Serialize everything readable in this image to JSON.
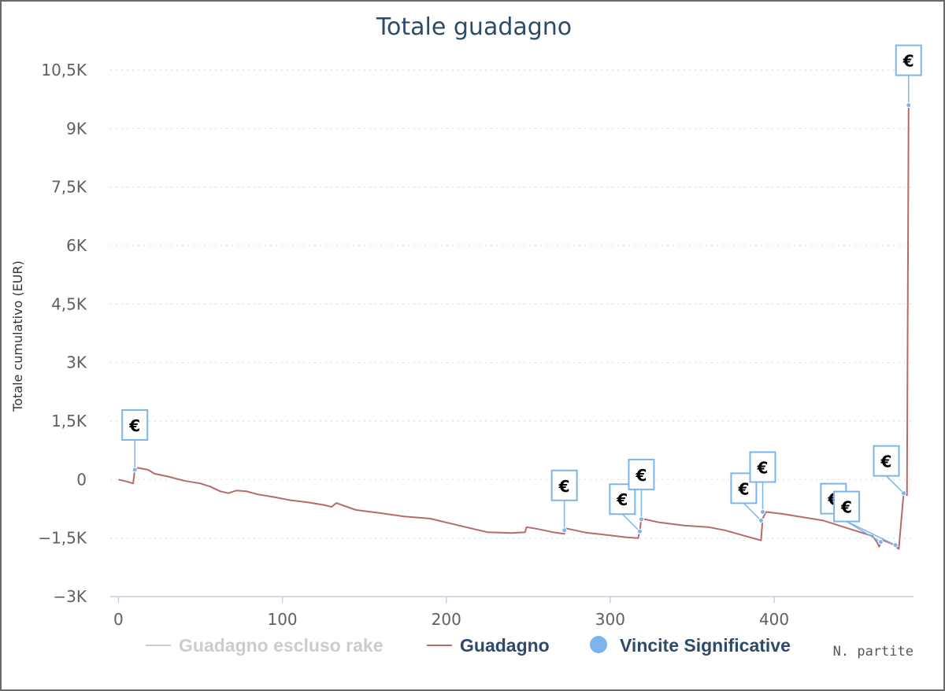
{
  "chart_data": {
    "type": "line",
    "title": "Totale guadagno",
    "xlabel": "N. partite",
    "ylabel": "Totale cumulativo (EUR)",
    "xlim": [
      -5,
      485
    ],
    "ylim": [
      -3000,
      10500
    ],
    "x_ticks": [
      {
        "value": 0,
        "label": "0"
      },
      {
        "value": 100,
        "label": "100"
      },
      {
        "value": 200,
        "label": "200"
      },
      {
        "value": 300,
        "label": "300"
      },
      {
        "value": 400,
        "label": "400"
      }
    ],
    "y_ticks": [
      {
        "value": -3000,
        "label": "−3K"
      },
      {
        "value": -1500,
        "label": "−1,5K"
      },
      {
        "value": 0,
        "label": "0"
      },
      {
        "value": 1500,
        "label": "1,5K"
      },
      {
        "value": 3000,
        "label": "3K"
      },
      {
        "value": 4500,
        "label": "4,5K"
      },
      {
        "value": 6000,
        "label": "6K"
      },
      {
        "value": 7500,
        "label": "7,5K"
      },
      {
        "value": 9000,
        "label": "9K"
      },
      {
        "value": 10500,
        "label": "10,5K"
      }
    ],
    "grid": true,
    "legend_position": "bottom",
    "series": [
      {
        "name": "Guadagno",
        "color": "#b86a6a",
        "points": [
          [
            0,
            0
          ],
          [
            5,
            -50
          ],
          [
            9,
            -100
          ],
          [
            10,
            250
          ],
          [
            12,
            300
          ],
          [
            18,
            250
          ],
          [
            22,
            150
          ],
          [
            30,
            80
          ],
          [
            40,
            -30
          ],
          [
            50,
            -100
          ],
          [
            56,
            -180
          ],
          [
            62,
            -300
          ],
          [
            67,
            -350
          ],
          [
            72,
            -280
          ],
          [
            78,
            -300
          ],
          [
            85,
            -380
          ],
          [
            95,
            -450
          ],
          [
            105,
            -530
          ],
          [
            115,
            -580
          ],
          [
            125,
            -650
          ],
          [
            130,
            -700
          ],
          [
            133,
            -600
          ],
          [
            136,
            -650
          ],
          [
            145,
            -780
          ],
          [
            160,
            -860
          ],
          [
            175,
            -950
          ],
          [
            190,
            -1000
          ],
          [
            205,
            -1150
          ],
          [
            215,
            -1250
          ],
          [
            225,
            -1350
          ],
          [
            240,
            -1370
          ],
          [
            248,
            -1350
          ],
          [
            249,
            -1220
          ],
          [
            255,
            -1260
          ],
          [
            265,
            -1350
          ],
          [
            272,
            -1390
          ],
          [
            273,
            -1250
          ],
          [
            285,
            -1360
          ],
          [
            300,
            -1430
          ],
          [
            310,
            -1480
          ],
          [
            317,
            -1500
          ],
          [
            318,
            -1330
          ],
          [
            319,
            -1000
          ],
          [
            330,
            -1100
          ],
          [
            345,
            -1180
          ],
          [
            360,
            -1220
          ],
          [
            370,
            -1300
          ],
          [
            380,
            -1420
          ],
          [
            392,
            -1560
          ],
          [
            393,
            -1000
          ],
          [
            395,
            -830
          ],
          [
            405,
            -880
          ],
          [
            415,
            -950
          ],
          [
            430,
            -1050
          ],
          [
            445,
            -1250
          ],
          [
            460,
            -1450
          ],
          [
            463,
            -1620
          ],
          [
            464,
            -1720
          ],
          [
            466,
            -1550
          ],
          [
            472,
            -1650
          ],
          [
            476,
            -1780
          ],
          [
            479,
            -350
          ],
          [
            481,
            -400
          ],
          [
            482,
            9600
          ]
        ]
      }
    ],
    "legend": [
      {
        "label": "Guadagno escluso rake",
        "color": "#cccccc",
        "text_color": "#cccccc",
        "symbol": "line"
      },
      {
        "label": "Guadagno",
        "color": "#b86a6a",
        "text_color": "#2d4a6b",
        "symbol": "line"
      },
      {
        "label": "Vincite Significative",
        "color": "#7cb5ec",
        "text_color": "#2d4a6b",
        "symbol": "circle"
      }
    ],
    "flags": {
      "text": "€",
      "color": "#7cb5ec",
      "points": [
        {
          "x": 10,
          "y": 250,
          "dir": "up"
        },
        {
          "x": 272,
          "y": -1300,
          "dir": "up"
        },
        {
          "x": 318,
          "y": -1330,
          "dir": "up-left"
        },
        {
          "x": 319,
          "y": -1020,
          "dir": "up"
        },
        {
          "x": 392,
          "y": -1050,
          "dir": "up-left"
        },
        {
          "x": 393,
          "y": -830,
          "dir": "up"
        },
        {
          "x": 465,
          "y": -1600,
          "dir": "left-far"
        },
        {
          "x": 474,
          "y": -1680,
          "dir": "left"
        },
        {
          "x": 479,
          "y": -350,
          "dir": "up-left"
        },
        {
          "x": 482,
          "y": 9600,
          "dir": "up"
        }
      ]
    }
  }
}
